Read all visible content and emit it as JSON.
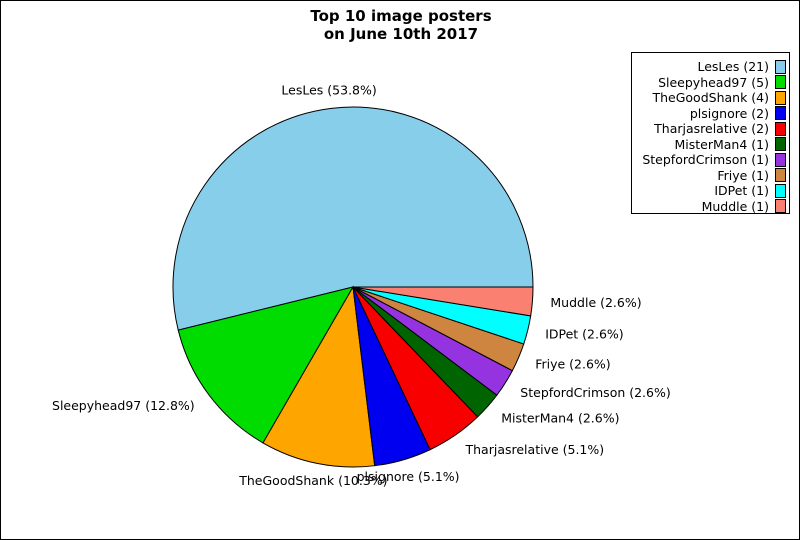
{
  "figure": {
    "title_line1": "Top 10 image posters",
    "title_line2": "on June 10th 2017"
  },
  "chart_data": {
    "type": "pie",
    "title": "Top 10 image posters on June 10th 2017",
    "total_count": 39,
    "start_angle_deg": 0,
    "direction": "counterclockwise",
    "legend_position": "upper right",
    "slices": [
      {
        "name": "LesLes",
        "count": 21,
        "percent": "53.8%",
        "pie_label": "LesLes (53.8%)",
        "legend_label": "LesLes (21)",
        "color": "#87CEEB"
      },
      {
        "name": "Sleepyhead97",
        "count": 5,
        "percent": "12.8%",
        "pie_label": "Sleepyhead97 (12.8%)",
        "legend_label": "Sleepyhead97 (5)",
        "color": "#00DC00"
      },
      {
        "name": "TheGoodShank",
        "count": 4,
        "percent": "10.3%",
        "pie_label": "TheGoodShank (10.3%)",
        "legend_label": "TheGoodShank (4)",
        "color": "#FFA500"
      },
      {
        "name": "plsignore",
        "count": 2,
        "percent": "5.1%",
        "pie_label": "plsignore (5.1%)",
        "legend_label": "plsignore (2)",
        "color": "#0000F0"
      },
      {
        "name": "Tharjasrelative",
        "count": 2,
        "percent": "5.1%",
        "pie_label": "Tharjasrelative (5.1%)",
        "legend_label": "Tharjasrelative (2)",
        "color": "#F80000"
      },
      {
        "name": "MisterMan4",
        "count": 1,
        "percent": "2.6%",
        "pie_label": "MisterMan4 (2.6%)",
        "legend_label": "MisterMan4 (1)",
        "color": "#006400"
      },
      {
        "name": "StepfordCrimson",
        "count": 1,
        "percent": "2.6%",
        "pie_label": "StepfordCrimson (2.6%)",
        "legend_label": "StepfordCrimson (1)",
        "color": "#9633E0"
      },
      {
        "name": "Friye",
        "count": 1,
        "percent": "2.6%",
        "pie_label": "Friye (2.6%)",
        "legend_label": "Friye (1)",
        "color": "#CD853F"
      },
      {
        "name": "IDPet",
        "count": 1,
        "percent": "2.6%",
        "pie_label": "IDPet (2.6%)",
        "legend_label": "IDPet (1)",
        "color": "#00FFFF"
      },
      {
        "name": "Muddle",
        "count": 1,
        "percent": "2.6%",
        "pie_label": "Muddle (2.6%)",
        "legend_label": "Muddle (1)",
        "color": "#FA8072"
      }
    ]
  }
}
